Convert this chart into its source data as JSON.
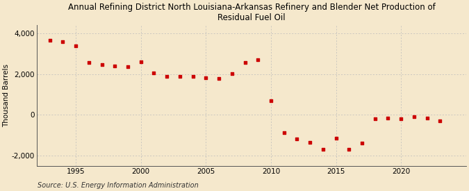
{
  "title": "Annual Refining District North Louisiana-Arkansas Refinery and Blender Net Production of\nResidual Fuel Oil",
  "ylabel": "Thousand Barrels",
  "source": "Source: U.S. Energy Information Administration",
  "background_color": "#f5e8cc",
  "marker_color": "#cc0000",
  "years": [
    1993,
    1994,
    1995,
    1996,
    1997,
    1998,
    1999,
    2000,
    2001,
    2002,
    2003,
    2004,
    2005,
    2006,
    2007,
    2008,
    2009,
    2010,
    2011,
    2012,
    2013,
    2014,
    2015,
    2016,
    2017,
    2018,
    2019,
    2020,
    2021,
    2022,
    2023
  ],
  "values": [
    3650,
    3600,
    3380,
    2550,
    2480,
    2380,
    2350,
    2600,
    2050,
    1880,
    1870,
    1870,
    1800,
    1790,
    2020,
    2580,
    2700,
    680,
    -870,
    -1170,
    -1350,
    -1700,
    -1150,
    -1700,
    -1400,
    -200,
    -150,
    -200,
    -80,
    -160,
    -300
  ],
  "ylim": [
    -2500,
    4400
  ],
  "yticks": [
    -2000,
    0,
    2000,
    4000
  ],
  "xlim": [
    1992,
    2025
  ],
  "xticks": [
    1995,
    2000,
    2005,
    2010,
    2015,
    2020
  ],
  "grid_color": "#bbbbbb",
  "title_fontsize": 8.5,
  "axis_fontsize": 7.5,
  "source_fontsize": 7
}
